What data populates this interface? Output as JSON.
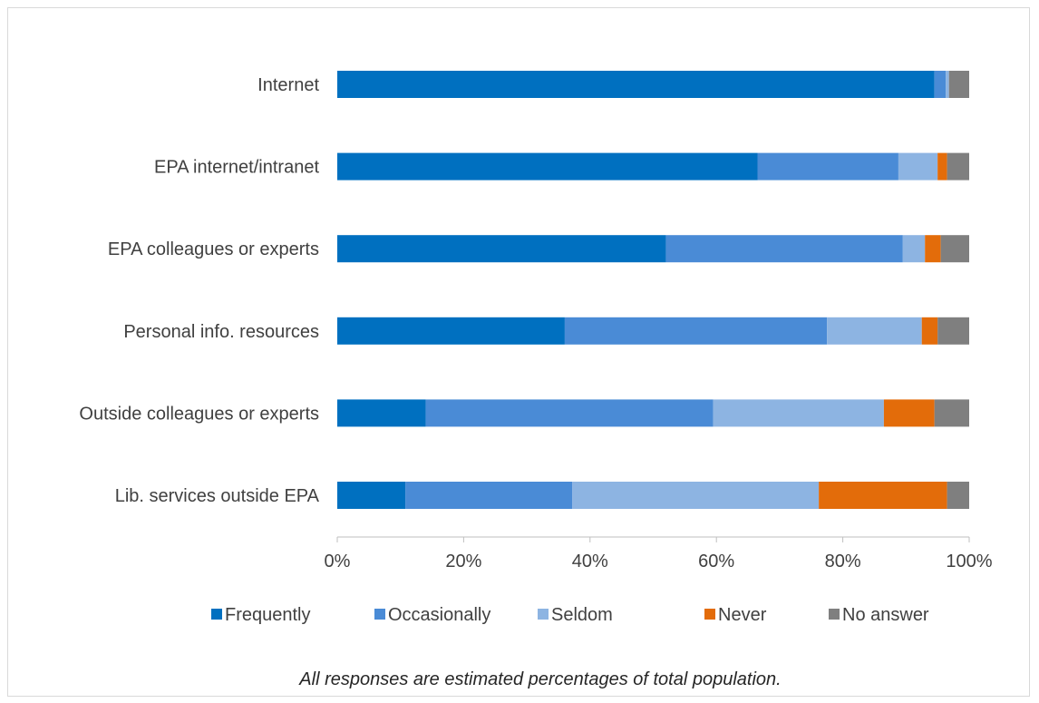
{
  "chart_data": {
    "type": "bar",
    "orientation": "horizontal",
    "stacked": true,
    "categories": [
      "Internet",
      "EPA internet/intranet",
      "EPA colleagues or experts",
      "Personal info. resources",
      "Outside colleagues or experts",
      "Lib. services outside EPA"
    ],
    "series": [
      {
        "name": "Frequently",
        "color": "#0070c0",
        "values": [
          94.5,
          66.5,
          52,
          36,
          14,
          10.8
        ]
      },
      {
        "name": "Occasionally",
        "color": "#4a8bd6",
        "values": [
          1.8,
          22.3,
          37.5,
          41.5,
          45.5,
          26.4
        ]
      },
      {
        "name": "Seldom",
        "color": "#8db4e2",
        "values": [
          0.5,
          6.2,
          3.5,
          15,
          27,
          39
        ]
      },
      {
        "name": "Never",
        "color": "#e36c0a",
        "values": [
          0,
          1.5,
          2.5,
          2.5,
          8,
          20.3
        ]
      },
      {
        "name": "No answer",
        "color": "#7f7f7f",
        "values": [
          3.2,
          3.5,
          4.5,
          5,
          5.5,
          3.5
        ]
      }
    ],
    "xlim": [
      0,
      100
    ],
    "xticks": [
      "0%",
      "20%",
      "40%",
      "60%",
      "80%",
      "100%"
    ],
    "legend_position": "bottom",
    "grid": false
  },
  "note": "All responses are estimated percentages of total population."
}
